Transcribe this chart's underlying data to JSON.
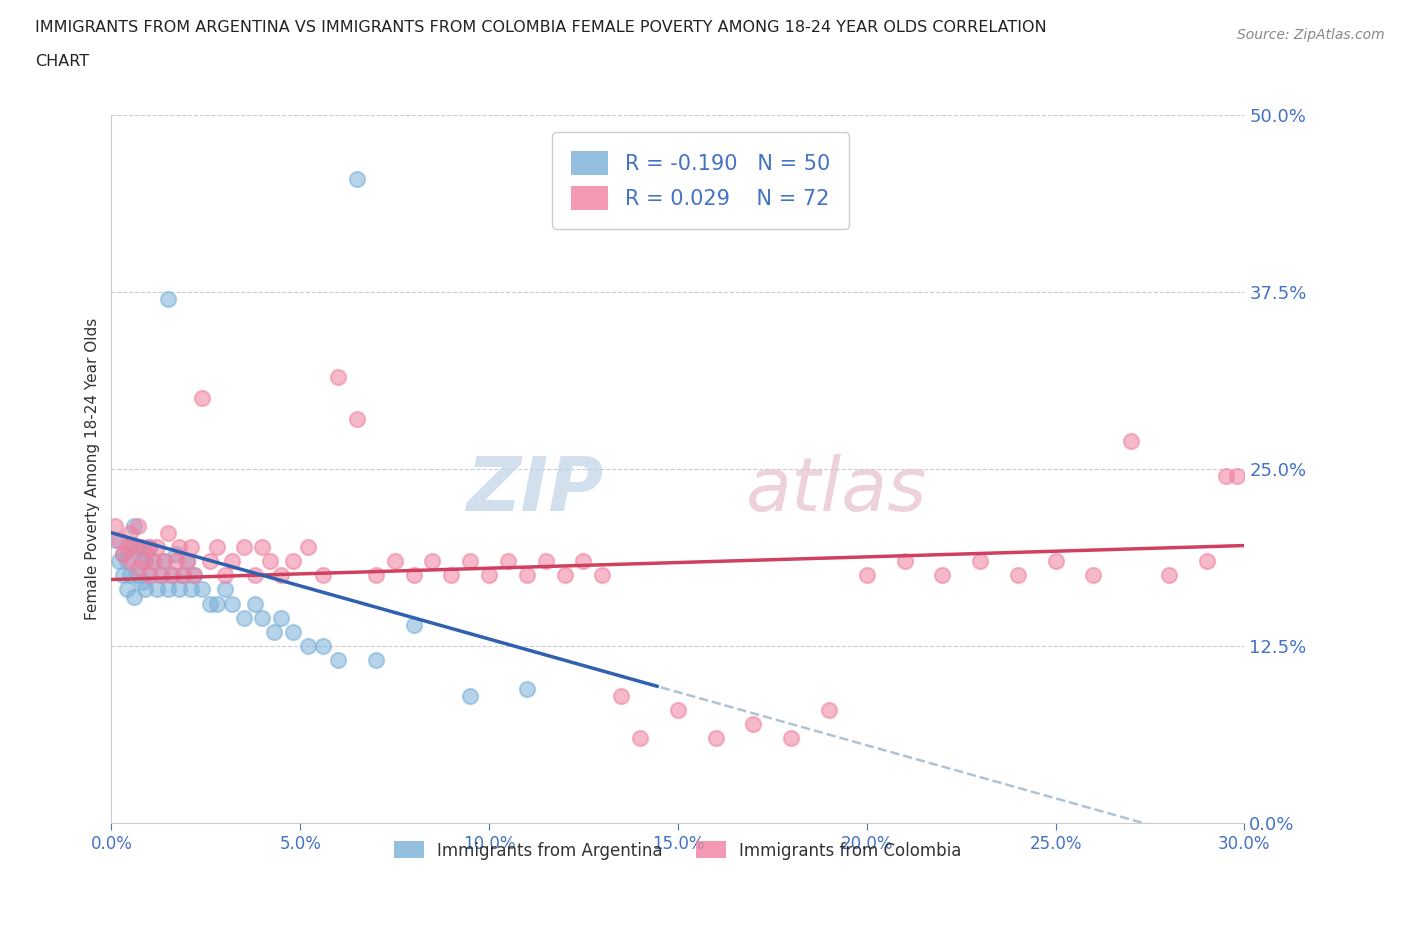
{
  "title_line1": "IMMIGRANTS FROM ARGENTINA VS IMMIGRANTS FROM COLOMBIA FEMALE POVERTY AMONG 18-24 YEAR OLDS CORRELATION",
  "title_line2": "CHART",
  "source_text": "Source: ZipAtlas.com",
  "ylabel": "Female Poverty Among 18-24 Year Olds",
  "xlim": [
    0.0,
    0.3
  ],
  "ylim": [
    0.0,
    0.5
  ],
  "yticks": [
    0.0,
    0.125,
    0.25,
    0.375,
    0.5
  ],
  "ytick_labels": [
    "0.0%",
    "12.5%",
    "25.0%",
    "37.5%",
    "50.0%"
  ],
  "xticks": [
    0.0,
    0.05,
    0.1,
    0.15,
    0.2,
    0.25,
    0.3
  ],
  "xtick_labels": [
    "0.0%",
    "5.0%",
    "10.0%",
    "15.0%",
    "20.0%",
    "25.0%",
    "30.0%"
  ],
  "argentina_R": -0.19,
  "argentina_N": 50,
  "colombia_R": 0.029,
  "colombia_N": 72,
  "argentina_scatter_color": "#7ab0d8",
  "colombia_scatter_color": "#f080a0",
  "argentina_line_color": "#3060b0",
  "colombia_line_color": "#d04060",
  "axis_label_color": "#4472c4",
  "title_color": "#222222",
  "source_color": "#888888",
  "watermark_text": "ZIPatlas",
  "watermark_color": "#d8e8f0",
  "watermark_text2": "atlas",
  "watermark_color2": "#e0b8c8",
  "legend_label_argentina": "Immigrants from Argentina",
  "legend_label_colombia": "Immigrants from Colombia",
  "background": "#ffffff",
  "grid_color": "#cccccc"
}
